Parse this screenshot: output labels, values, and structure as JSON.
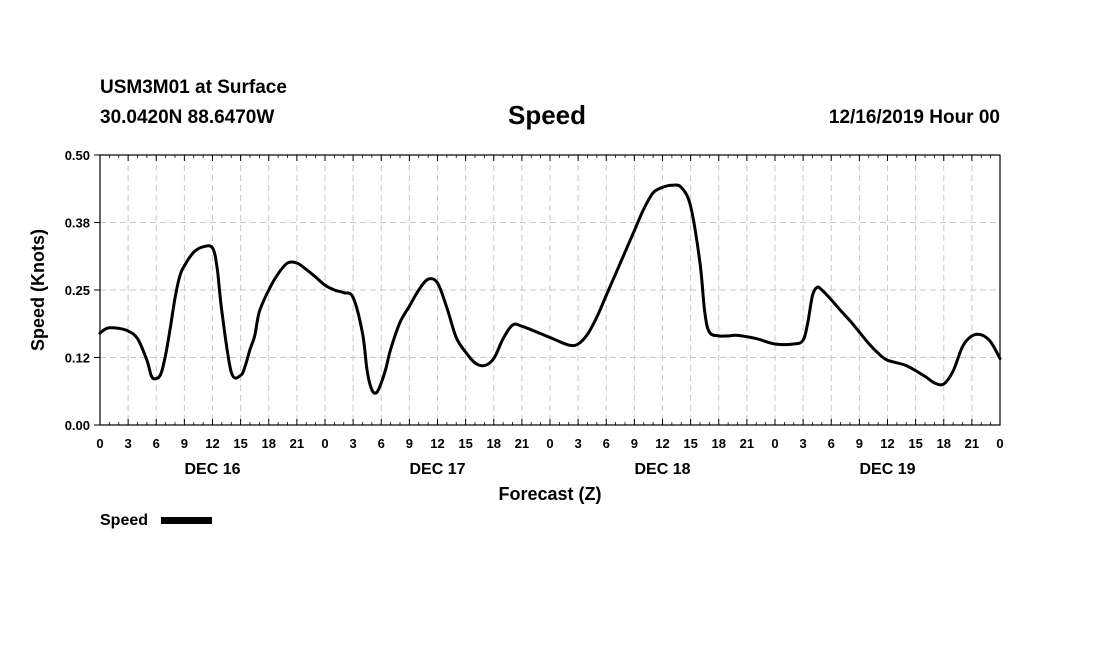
{
  "header": {
    "station": "USM3M01 at Surface",
    "coords": "30.0420N 88.6470W",
    "title": "Speed",
    "datetime": "12/16/2019 Hour 00"
  },
  "legend": {
    "label": "Speed"
  },
  "chart_data": {
    "type": "line",
    "title": "Speed",
    "xlabel": "Forecast (Z)",
    "ylabel": "Speed (Knots)",
    "xlim": [
      0,
      96
    ],
    "ylim": [
      0.0,
      0.5
    ],
    "yticks": [
      "0.00",
      "0.12",
      "0.25",
      "0.38",
      "0.50"
    ],
    "ytick_values": [
      0.0,
      0.125,
      0.25,
      0.375,
      0.5
    ],
    "xtick_labels": [
      "0",
      "3",
      "6",
      "9",
      "12",
      "15",
      "18",
      "21",
      "0",
      "3",
      "6",
      "9",
      "12",
      "15",
      "18",
      "21",
      "0",
      "3",
      "6",
      "9",
      "12",
      "15",
      "18",
      "21",
      "0",
      "3",
      "6",
      "9",
      "12",
      "15",
      "18",
      "21",
      "0"
    ],
    "day_labels": [
      {
        "label": "DEC 16",
        "hour": 12
      },
      {
        "label": "DEC 17",
        "hour": 36
      },
      {
        "label": "DEC 18",
        "hour": 60
      },
      {
        "label": "DEC 19",
        "hour": 84
      }
    ],
    "grid": true,
    "series": [
      {
        "name": "Speed",
        "color": "#000000",
        "x": [
          0,
          0.5,
          1,
          2,
          3,
          4,
          5,
          5.5,
          6,
          6.5,
          7,
          7.5,
          8,
          8.5,
          9,
          10,
          11,
          12,
          12.5,
          13,
          14,
          15,
          15.5,
          16,
          16.5,
          17,
          18,
          19,
          20,
          21,
          22,
          23,
          24,
          25,
          26,
          27,
          28,
          28.5,
          29,
          29.5,
          30,
          30.5,
          31,
          32,
          33,
          34,
          35,
          36,
          37,
          38,
          39,
          40,
          41,
          42,
          43,
          44,
          45,
          48,
          50,
          51,
          52,
          53,
          54,
          55,
          56,
          57,
          58,
          59,
          60,
          61,
          62,
          63,
          64,
          64.5,
          65,
          66,
          67,
          68,
          70,
          72,
          74,
          75,
          75.5,
          76,
          76.5,
          77,
          78,
          79,
          80,
          81,
          82,
          83,
          84,
          86,
          88,
          89,
          90,
          91,
          92,
          93,
          94,
          95,
          96
        ],
        "values": [
          0.17,
          0.177,
          0.18,
          0.179,
          0.174,
          0.16,
          0.12,
          0.09,
          0.086,
          0.095,
          0.13,
          0.18,
          0.235,
          0.275,
          0.295,
          0.32,
          0.33,
          0.328,
          0.29,
          0.21,
          0.098,
          0.092,
          0.11,
          0.14,
          0.165,
          0.21,
          0.25,
          0.28,
          0.3,
          0.3,
          0.288,
          0.274,
          0.259,
          0.25,
          0.245,
          0.236,
          0.17,
          0.1,
          0.065,
          0.06,
          0.078,
          0.105,
          0.14,
          0.19,
          0.22,
          0.25,
          0.27,
          0.263,
          0.217,
          0.162,
          0.135,
          0.115,
          0.11,
          0.123,
          0.16,
          0.185,
          0.183,
          0.162,
          0.148,
          0.15,
          0.168,
          0.2,
          0.24,
          0.28,
          0.32,
          0.36,
          0.4,
          0.43,
          0.44,
          0.444,
          0.44,
          0.405,
          0.3,
          0.21,
          0.172,
          0.165,
          0.165,
          0.166,
          0.16,
          0.15,
          0.15,
          0.157,
          0.19,
          0.24,
          0.255,
          0.25,
          0.232,
          0.212,
          0.193,
          0.172,
          0.151,
          0.133,
          0.12,
          0.11,
          0.09,
          0.078,
          0.076,
          0.1,
          0.145,
          0.165,
          0.167,
          0.154,
          0.123
        ]
      }
    ]
  }
}
